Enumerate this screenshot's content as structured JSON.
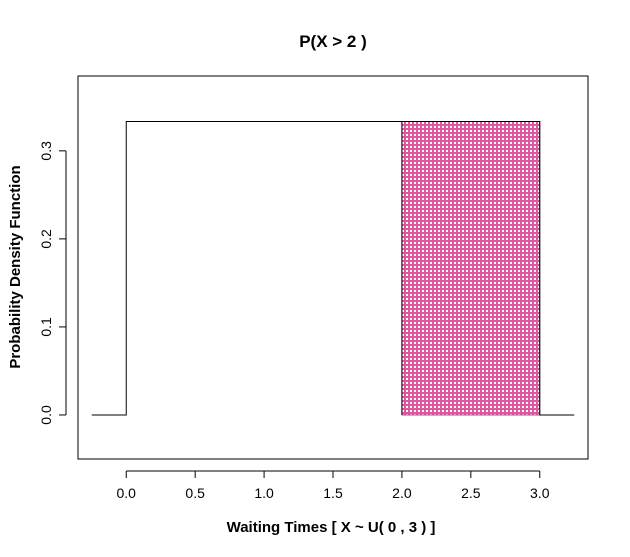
{
  "chart_data": {
    "type": "area",
    "title": "P(X > 2 )",
    "xlabel": "Waiting Times [ X ~ U( 0 , 3  ) ]",
    "ylabel": "Probability Density Function",
    "xlim": [
      -0.35,
      3.35
    ],
    "ylim": [
      -0.05,
      0.385
    ],
    "x_ticks": [
      0.0,
      0.5,
      1.0,
      1.5,
      2.0,
      2.5,
      3.0
    ],
    "x_tick_labels": [
      "0.0",
      "0.5",
      "1.0",
      "1.5",
      "2.0",
      "2.5",
      "3.0"
    ],
    "y_ticks": [
      0.0,
      0.1,
      0.2,
      0.3
    ],
    "y_tick_labels": [
      "0.0",
      "0.1",
      "0.2",
      "0.3"
    ],
    "density": {
      "x": [
        -0.25,
        0.0,
        0.0,
        3.0,
        3.0,
        3.25
      ],
      "y": [
        0.0,
        0.0,
        0.3333,
        0.3333,
        0.0,
        0.0
      ]
    },
    "shaded_region": {
      "x_from": 2.0,
      "x_to": 3.0,
      "height": 0.3333,
      "fill": "#ff66cc",
      "stroke": "#cc3399"
    },
    "line_color": "#000000",
    "grid": false,
    "legend": "none"
  }
}
